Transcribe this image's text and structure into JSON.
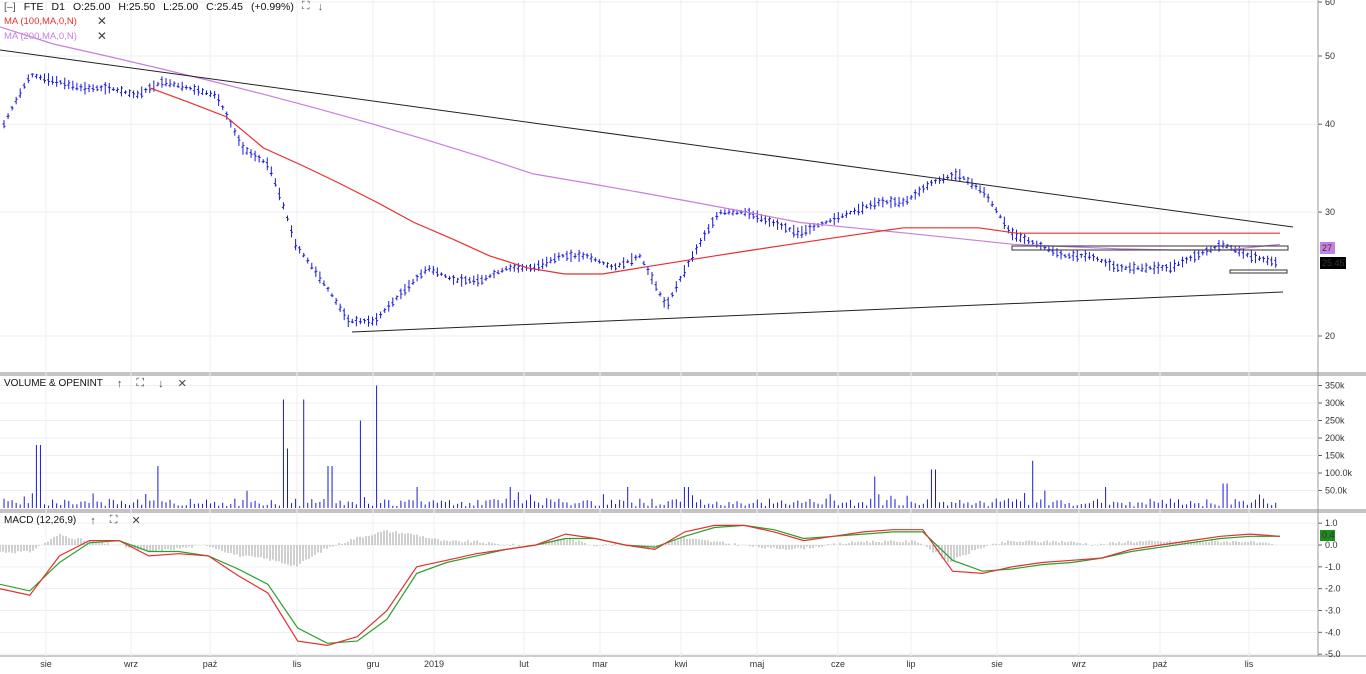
{
  "header": {
    "collapse_label": "[–]",
    "symbol": "FTE",
    "interval": "D1",
    "open": "O:25.00",
    "high": "H:25.50",
    "low": "L:25.00",
    "close": "C:25.45",
    "change": "(+0.99%)"
  },
  "indicators": {
    "ma1_label": "MA (100,MA,0,N)",
    "ma2_label": "MA (200,MA,0,N)",
    "ma1_color": "#e53030",
    "ma2_color": "#c77fe0"
  },
  "volume_pane": {
    "title": "VOLUME & OPENINT"
  },
  "macd_pane": {
    "title": "MACD (12,26,9)"
  },
  "price_badges": {
    "ma_value": "27",
    "last_price": "25.45"
  },
  "macd_badge": "0.4",
  "colors": {
    "candle": "#1a1ad6",
    "volume": "#1a1ad6",
    "ma100": "#e53030",
    "ma200": "#c77fe0",
    "macd_line": "#e53030",
    "signal_line": "#2aa02a",
    "histogram": "#a0a0a0",
    "badge_ma": "#c77fe0",
    "badge_last": "#000000",
    "badge_macd": "#1e8c1e"
  },
  "chart_data": [
    {
      "type": "line",
      "name": "price",
      "x_ticks": [
        "sie",
        "wrz",
        "paź",
        "lis",
        "gru",
        "2019",
        "lut",
        "mar",
        "kwi",
        "maj",
        "cze",
        "lip",
        "sie",
        "wrz",
        "paź",
        "lis"
      ],
      "y_ticks": [
        20,
        30,
        40,
        50,
        60
      ],
      "y_scale": "log",
      "ylim": [
        18,
        60
      ],
      "close": [
        40,
        47,
        46,
        45,
        45,
        44,
        46,
        45,
        44,
        37,
        35,
        27,
        24,
        21,
        21,
        23,
        25,
        24,
        24,
        25,
        25,
        26,
        26,
        25,
        26,
        22,
        26,
        30,
        30,
        29,
        28,
        29,
        30,
        31,
        31,
        33,
        34,
        32,
        28,
        27,
        26,
        26,
        25,
        25,
        25,
        26,
        27,
        26,
        25.45
      ],
      "ma100": [
        null,
        null,
        null,
        null,
        45,
        43,
        41,
        37,
        35,
        33,
        31,
        29,
        27.5,
        26,
        25,
        24.5,
        24.5,
        25,
        25.5,
        26,
        26.5,
        27,
        27.5,
        28,
        28.5,
        28.5,
        28.5,
        28,
        28,
        28,
        28,
        28,
        28,
        28,
        28
      ],
      "ma200": [
        55,
        52,
        50,
        48,
        46,
        44,
        42,
        40,
        38,
        36,
        34,
        33,
        32,
        31,
        30,
        29,
        28.5,
        28,
        27.5,
        27,
        26.8,
        26.6,
        26.5,
        26.5,
        27
      ],
      "annotations": [
        "descending trendline",
        "ascending trendline",
        "horizontal range 25–27"
      ]
    },
    {
      "type": "bar",
      "name": "volume",
      "y_ticks": [
        "50.0k",
        "100.0k",
        "150k",
        "200k",
        "250k",
        "300k",
        "350k"
      ],
      "ylim": [
        0,
        360000
      ]
    },
    {
      "type": "line",
      "name": "macd",
      "y_ticks": [
        "1.0",
        "0.0",
        "-1.0",
        "-2.0",
        "-3.0",
        "-4.0",
        "-5.0"
      ],
      "ylim": [
        -5,
        1
      ],
      "macd": [
        -2.0,
        -2.3,
        -0.5,
        0.2,
        0.2,
        -0.5,
        -0.4,
        -0.5,
        -1.4,
        -2.2,
        -4.4,
        -4.6,
        -4.2,
        -3.0,
        -1.0,
        -0.7,
        -0.4,
        -0.2,
        0.0,
        0.5,
        0.3,
        0.0,
        -0.2,
        0.6,
        0.9,
        0.9,
        0.6,
        0.2,
        0.4,
        0.6,
        0.7,
        0.7,
        -1.2,
        -1.3,
        -1.0,
        -0.8,
        -0.7,
        -0.6,
        -0.2,
        0.0,
        0.2,
        0.4,
        0.5,
        0.4
      ],
      "signal": [
        -1.8,
        -2.1,
        -0.8,
        0.1,
        0.2,
        -0.3,
        -0.3,
        -0.5,
        -1.1,
        -1.8,
        -3.8,
        -4.5,
        -4.4,
        -3.4,
        -1.3,
        -0.8,
        -0.5,
        -0.2,
        0.0,
        0.3,
        0.3,
        0.0,
        -0.1,
        0.4,
        0.8,
        0.9,
        0.7,
        0.3,
        0.4,
        0.5,
        0.6,
        0.6,
        -0.7,
        -1.2,
        -1.1,
        -0.9,
        -0.8,
        -0.6,
        -0.3,
        -0.1,
        0.1,
        0.3,
        0.4,
        0.4
      ]
    }
  ]
}
